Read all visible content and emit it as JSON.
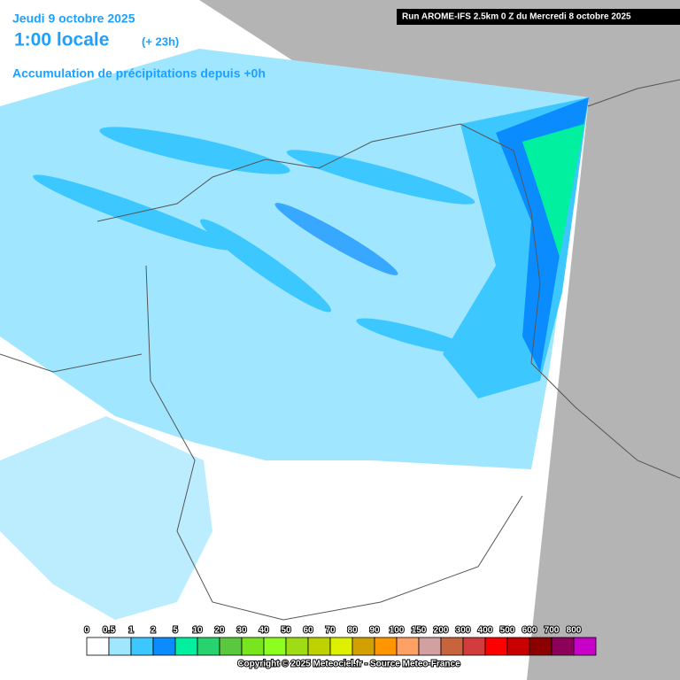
{
  "header": {
    "date": "Jeudi 9 octobre 2025",
    "time": "1:00 locale",
    "offset": "(+ 23h)",
    "subtitle": "Accumulation de précipitations depuis +0h",
    "run": "Run AROME-IFS 2.5km 0 Z du Mercredi 8 octobre 2025"
  },
  "legend": [
    {
      "label": "0",
      "color": "#ffffff"
    },
    {
      "label": "0.5",
      "color": "#a0e6ff"
    },
    {
      "label": "1",
      "color": "#3cc8ff"
    },
    {
      "label": "2",
      "color": "#0a8cff"
    },
    {
      "label": "5",
      "color": "#00f0a0"
    },
    {
      "label": "10",
      "color": "#28d26e"
    },
    {
      "label": "20",
      "color": "#5ac83c"
    },
    {
      "label": "30",
      "color": "#78e61e"
    },
    {
      "label": "40",
      "color": "#8cff1e"
    },
    {
      "label": "50",
      "color": "#a0dc14"
    },
    {
      "label": "60",
      "color": "#bed200"
    },
    {
      "label": "70",
      "color": "#dcf000"
    },
    {
      "label": "80",
      "color": "#d2a000"
    },
    {
      "label": "90",
      "color": "#ff9600"
    },
    {
      "label": "100",
      "color": "#ffa064"
    },
    {
      "label": "150",
      "color": "#d2a0a0"
    },
    {
      "label": "200",
      "color": "#c8643c"
    },
    {
      "label": "300",
      "color": "#d23c3c"
    },
    {
      "label": "400",
      "color": "#ff0000"
    },
    {
      "label": "500",
      "color": "#c80000"
    },
    {
      "label": "600",
      "color": "#8c0000"
    },
    {
      "label": "700",
      "color": "#8c005a"
    },
    {
      "label": "800",
      "color": "#c800c8"
    }
  ],
  "footer": {
    "copyright": "Copyright © 2025 Meteociel.fr - Source Meteo-France"
  }
}
